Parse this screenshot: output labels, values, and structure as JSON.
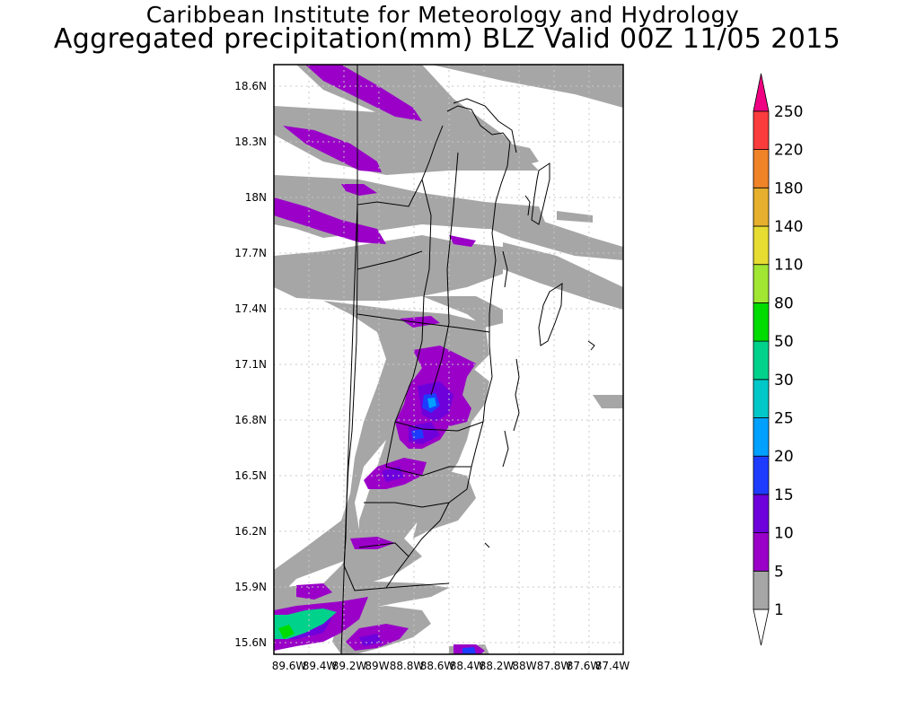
{
  "header": {
    "institute": "Caribbean Institute for Meteorology and Hydrology",
    "product_title": "Aggregated precipitation(mm) BLZ Valid 00Z 11/05 2015"
  },
  "map": {
    "lat_labels": [
      "18.6N",
      "18.3N",
      "18N",
      "17.7N",
      "17.4N",
      "17.1N",
      "16.8N",
      "16.5N",
      "16.2N",
      "15.9N",
      "15.6N"
    ],
    "lon_labels": [
      "89.6W",
      "89.4W",
      "89.2W",
      "89W",
      "88.8W",
      "88.6W",
      "88.4W",
      "88.2W",
      "88W",
      "87.8W",
      "87.6W",
      "87.4W"
    ]
  },
  "colorbar": {
    "levels": [
      "1",
      "5",
      "10",
      "15",
      "20",
      "25",
      "30",
      "50",
      "80",
      "110",
      "140",
      "180",
      "220",
      "250"
    ],
    "colors": [
      "#ffffff",
      "#a6a6a6",
      "#9a00c8",
      "#6e00dc",
      "#1e3cff",
      "#00a0ff",
      "#00c8c8",
      "#00d28c",
      "#00dc00",
      "#a0e632",
      "#e6dc32",
      "#e6af2d",
      "#f08228",
      "#fa3c3c",
      "#f00082"
    ]
  }
}
